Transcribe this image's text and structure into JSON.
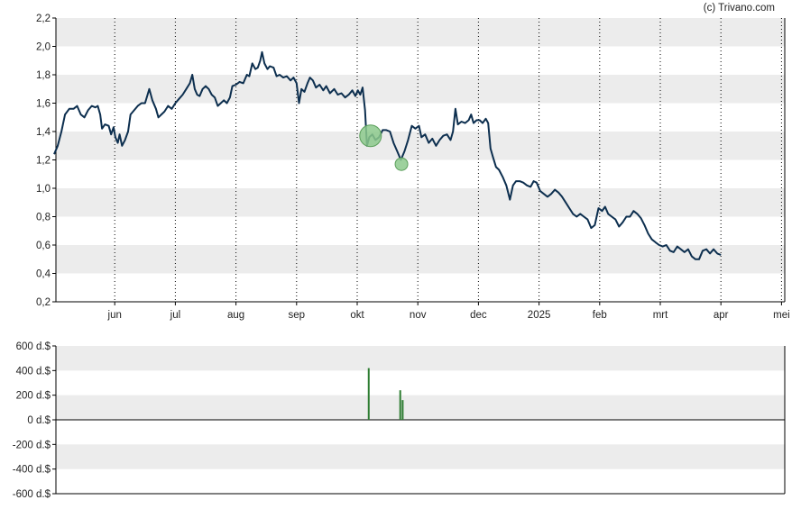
{
  "credit": "(c) Trivano.com",
  "colors": {
    "line": "#0d2f4f",
    "band": "#ececec",
    "axis": "#000000",
    "grid": "#000000",
    "marker": "#8cc98c",
    "marker_edge": "#5a9e5a",
    "volume": "#2e7d32"
  },
  "chart_data": [
    {
      "type": "line",
      "x_ticks": [
        "jun",
        "jul",
        "aug",
        "sep",
        "okt",
        "nov",
        "dec",
        "2025",
        "feb",
        "mrt",
        "apr",
        "mei"
      ],
      "y_ticks": [
        "0,2",
        "0,4",
        "0,6",
        "0,8",
        "1,0",
        "1,2",
        "1,4",
        "1,6",
        "1,8",
        "2,0",
        "2,2"
      ],
      "ylim": [
        0.2,
        2.2
      ],
      "x_range_months": [
        0,
        12.0
      ],
      "grid": "vertical dotted at month ticks, alternating horizontal bands",
      "series": [
        {
          "points": [
            [
              0.0,
              1.24
            ],
            [
              0.06,
              1.3
            ],
            [
              0.12,
              1.4
            ],
            [
              0.18,
              1.52
            ],
            [
              0.25,
              1.56
            ],
            [
              0.32,
              1.56
            ],
            [
              0.38,
              1.58
            ],
            [
              0.44,
              1.52
            ],
            [
              0.5,
              1.5
            ],
            [
              0.56,
              1.55
            ],
            [
              0.62,
              1.58
            ],
            [
              0.68,
              1.57
            ],
            [
              0.72,
              1.58
            ],
            [
              0.76,
              1.52
            ],
            [
              0.79,
              1.42
            ],
            [
              0.84,
              1.45
            ],
            [
              0.9,
              1.44
            ],
            [
              0.94,
              1.38
            ],
            [
              0.98,
              1.43
            ],
            [
              1.01,
              1.36
            ],
            [
              1.05,
              1.32
            ],
            [
              1.08,
              1.38
            ],
            [
              1.12,
              1.3
            ],
            [
              1.17,
              1.34
            ],
            [
              1.22,
              1.4
            ],
            [
              1.26,
              1.52
            ],
            [
              1.32,
              1.55
            ],
            [
              1.38,
              1.58
            ],
            [
              1.44,
              1.6
            ],
            [
              1.5,
              1.6
            ],
            [
              1.57,
              1.7
            ],
            [
              1.62,
              1.62
            ],
            [
              1.68,
              1.56
            ],
            [
              1.72,
              1.5
            ],
            [
              1.77,
              1.52
            ],
            [
              1.82,
              1.54
            ],
            [
              1.88,
              1.58
            ],
            [
              1.94,
              1.56
            ],
            [
              2.0,
              1.6
            ],
            [
              2.06,
              1.63
            ],
            [
              2.12,
              1.66
            ],
            [
              2.18,
              1.7
            ],
            [
              2.24,
              1.74
            ],
            [
              2.28,
              1.8
            ],
            [
              2.32,
              1.7
            ],
            [
              2.36,
              1.66
            ],
            [
              2.4,
              1.65
            ],
            [
              2.45,
              1.7
            ],
            [
              2.5,
              1.72
            ],
            [
              2.55,
              1.7
            ],
            [
              2.6,
              1.66
            ],
            [
              2.65,
              1.64
            ],
            [
              2.7,
              1.58
            ],
            [
              2.75,
              1.6
            ],
            [
              2.8,
              1.62
            ],
            [
              2.85,
              1.6
            ],
            [
              2.9,
              1.64
            ],
            [
              2.94,
              1.72
            ],
            [
              3.0,
              1.73
            ],
            [
              3.06,
              1.75
            ],
            [
              3.12,
              1.74
            ],
            [
              3.18,
              1.8
            ],
            [
              3.22,
              1.79
            ],
            [
              3.27,
              1.88
            ],
            [
              3.32,
              1.84
            ],
            [
              3.36,
              1.85
            ],
            [
              3.4,
              1.9
            ],
            [
              3.43,
              1.96
            ],
            [
              3.47,
              1.88
            ],
            [
              3.52,
              1.84
            ],
            [
              3.56,
              1.86
            ],
            [
              3.62,
              1.85
            ],
            [
              3.67,
              1.79
            ],
            [
              3.72,
              1.8
            ],
            [
              3.78,
              1.78
            ],
            [
              3.84,
              1.79
            ],
            [
              3.9,
              1.76
            ],
            [
              3.95,
              1.78
            ],
            [
              4.0,
              1.74
            ],
            [
              4.04,
              1.6
            ],
            [
              4.08,
              1.7
            ],
            [
              4.13,
              1.68
            ],
            [
              4.18,
              1.74
            ],
            [
              4.22,
              1.78
            ],
            [
              4.27,
              1.76
            ],
            [
              4.32,
              1.71
            ],
            [
              4.38,
              1.73
            ],
            [
              4.44,
              1.69
            ],
            [
              4.49,
              1.72
            ],
            [
              4.55,
              1.67
            ],
            [
              4.62,
              1.7
            ],
            [
              4.68,
              1.66
            ],
            [
              4.74,
              1.67
            ],
            [
              4.8,
              1.64
            ],
            [
              4.86,
              1.66
            ],
            [
              4.92,
              1.69
            ],
            [
              4.97,
              1.65
            ],
            [
              5.01,
              1.69
            ],
            [
              5.05,
              1.66
            ],
            [
              5.09,
              1.71
            ],
            [
              5.13,
              1.55
            ],
            [
              5.16,
              1.3
            ],
            [
              5.2,
              1.36
            ],
            [
              5.25,
              1.38
            ],
            [
              5.3,
              1.34
            ],
            [
              5.36,
              1.36
            ],
            [
              5.42,
              1.41
            ],
            [
              5.48,
              1.41
            ],
            [
              5.54,
              1.4
            ],
            [
              5.6,
              1.32
            ],
            [
              5.66,
              1.26
            ],
            [
              5.72,
              1.2
            ],
            [
              5.78,
              1.26
            ],
            [
              5.84,
              1.34
            ],
            [
              5.9,
              1.44
            ],
            [
              5.96,
              1.42
            ],
            [
              6.02,
              1.44
            ],
            [
              6.06,
              1.36
            ],
            [
              6.12,
              1.38
            ],
            [
              6.18,
              1.32
            ],
            [
              6.24,
              1.35
            ],
            [
              6.3,
              1.3
            ],
            [
              6.36,
              1.34
            ],
            [
              6.42,
              1.37
            ],
            [
              6.48,
              1.38
            ],
            [
              6.54,
              1.34
            ],
            [
              6.58,
              1.4
            ],
            [
              6.62,
              1.56
            ],
            [
              6.66,
              1.45
            ],
            [
              6.72,
              1.47
            ],
            [
              6.78,
              1.46
            ],
            [
              6.84,
              1.48
            ],
            [
              6.88,
              1.52
            ],
            [
              6.92,
              1.46
            ],
            [
              6.97,
              1.48
            ],
            [
              7.02,
              1.48
            ],
            [
              7.07,
              1.46
            ],
            [
              7.12,
              1.49
            ],
            [
              7.16,
              1.46
            ],
            [
              7.2,
              1.28
            ],
            [
              7.24,
              1.22
            ],
            [
              7.29,
              1.15
            ],
            [
              7.34,
              1.13
            ],
            [
              7.4,
              1.08
            ],
            [
              7.46,
              1.02
            ],
            [
              7.52,
              0.92
            ],
            [
              7.57,
              1.02
            ],
            [
              7.62,
              1.05
            ],
            [
              7.68,
              1.05
            ],
            [
              7.74,
              1.04
            ],
            [
              7.8,
              1.02
            ],
            [
              7.86,
              1.01
            ],
            [
              7.91,
              1.05
            ],
            [
              7.96,
              1.04
            ],
            [
              8.02,
              0.98
            ],
            [
              8.08,
              0.96
            ],
            [
              8.14,
              0.94
            ],
            [
              8.2,
              0.96
            ],
            [
              8.26,
              0.99
            ],
            [
              8.32,
              0.97
            ],
            [
              8.38,
              0.94
            ],
            [
              8.44,
              0.9
            ],
            [
              8.5,
              0.86
            ],
            [
              8.56,
              0.82
            ],
            [
              8.62,
              0.8
            ],
            [
              8.68,
              0.82
            ],
            [
              8.74,
              0.8
            ],
            [
              8.8,
              0.78
            ],
            [
              8.86,
              0.72
            ],
            [
              8.92,
              0.74
            ],
            [
              8.98,
              0.86
            ],
            [
              9.04,
              0.84
            ],
            [
              9.09,
              0.87
            ],
            [
              9.14,
              0.82
            ],
            [
              9.2,
              0.8
            ],
            [
              9.26,
              0.78
            ],
            [
              9.32,
              0.73
            ],
            [
              9.38,
              0.76
            ],
            [
              9.44,
              0.8
            ],
            [
              9.5,
              0.8
            ],
            [
              9.56,
              0.84
            ],
            [
              9.62,
              0.82
            ],
            [
              9.68,
              0.79
            ],
            [
              9.74,
              0.74
            ],
            [
              9.8,
              0.68
            ],
            [
              9.86,
              0.64
            ],
            [
              9.92,
              0.62
            ],
            [
              9.98,
              0.6
            ],
            [
              10.04,
              0.59
            ],
            [
              10.1,
              0.6
            ],
            [
              10.16,
              0.56
            ],
            [
              10.22,
              0.55
            ],
            [
              10.28,
              0.59
            ],
            [
              10.34,
              0.57
            ],
            [
              10.4,
              0.55
            ],
            [
              10.46,
              0.57
            ],
            [
              10.52,
              0.52
            ],
            [
              10.58,
              0.5
            ],
            [
              10.64,
              0.5
            ],
            [
              10.7,
              0.56
            ],
            [
              10.76,
              0.57
            ],
            [
              10.82,
              0.54
            ],
            [
              10.88,
              0.57
            ],
            [
              10.94,
              0.54
            ],
            [
              11.0,
              0.53
            ]
          ]
        }
      ],
      "markers": [
        {
          "x": 5.22,
          "y": 1.37,
          "size": "large"
        },
        {
          "x": 5.73,
          "y": 1.17,
          "size": "small"
        }
      ]
    },
    {
      "type": "bar",
      "y_ticks": [
        "600 d.$",
        "400 d.$",
        "200 d.$",
        "0 d.$",
        "-200 d.$",
        "-400 d.$",
        "-600 d.$"
      ],
      "ylim": [
        -600,
        600
      ],
      "series": [
        {
          "bars": [
            {
              "x": 5.19,
              "value": 420
            },
            {
              "x": 5.71,
              "value": 240
            },
            {
              "x": 5.75,
              "value": 160
            }
          ]
        }
      ]
    }
  ]
}
